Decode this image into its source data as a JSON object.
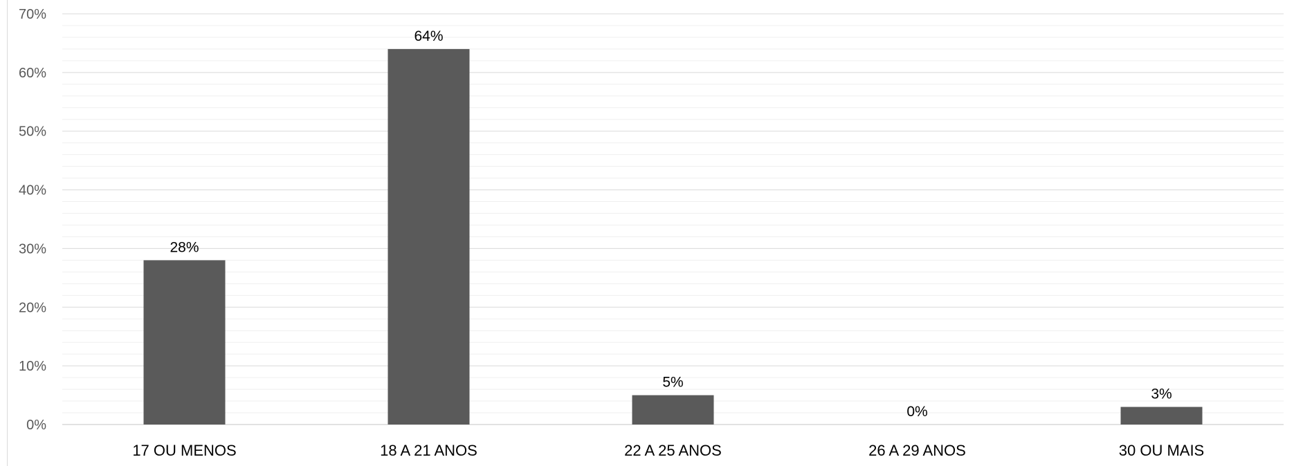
{
  "chart_data": {
    "type": "bar",
    "categories": [
      "17 OU MENOS",
      "18 A 21 ANOS",
      "22 A 25 ANOS",
      "26 A 29 ANOS",
      "30 OU MAIS"
    ],
    "values": [
      28,
      64,
      5,
      0,
      3
    ],
    "data_labels": [
      "28%",
      "64%",
      "5%",
      "0%",
      "3%"
    ],
    "ylim": [
      0,
      70
    ],
    "yticks": [
      0,
      10,
      20,
      30,
      40,
      50,
      60,
      70
    ],
    "ytick_labels": [
      "0%",
      "10%",
      "20%",
      "30%",
      "40%",
      "50%",
      "60%",
      "70%"
    ],
    "title": "",
    "xlabel": "",
    "ylabel": "",
    "grid": true,
    "minor_grid": true,
    "legend": "none",
    "colors": {
      "bar": "#5a5a5a",
      "major_grid": "#d9d9d9",
      "minor_grid": "#efefef"
    }
  }
}
